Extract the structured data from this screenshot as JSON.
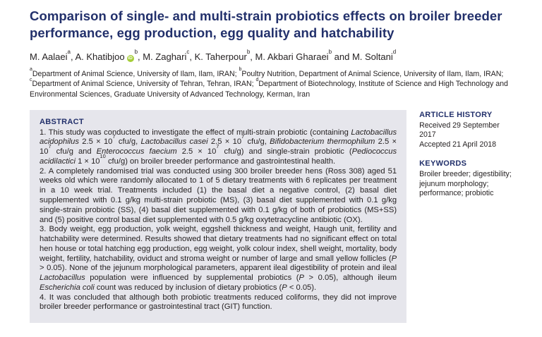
{
  "colors": {
    "accent_navy": "#22306b",
    "abstract_background": "#e6e6ec",
    "orcid_green": "#a6ce39"
  },
  "header": {
    "title": "Comparison of single- and multi-strain probiotics effects on broiler breeder performance, egg production, egg quality and hatchability",
    "authors": [
      {
        "prefix": "",
        "name": "M. Aalaei",
        "sup": "a",
        "orcid": false
      },
      {
        "prefix": ", ",
        "name": "A. Khatibjoo",
        "sup": "b",
        "orcid": true
      },
      {
        "prefix": ", ",
        "name": "M. Zaghari",
        "sup": "c",
        "orcid": false
      },
      {
        "prefix": ", ",
        "name": "K. Taherpour",
        "sup": "b",
        "orcid": false
      },
      {
        "prefix": ", ",
        "name": "M. Akbari Gharaei",
        "sup": "b",
        "orcid": false
      },
      {
        "prefix": " and ",
        "name": "M. Soltani",
        "sup": "d",
        "orcid": false
      }
    ],
    "orcid_icon_text": "iD",
    "affiliation_runs": [
      {
        "sup": "a"
      },
      "Department of Animal Science, University of Ilam, Ilam, IRAN; ",
      {
        "sup": "b"
      },
      "Poultry Nutrition, Department of Animal Science, University of Ilam, Ilam, IRAN; ",
      {
        "sup": "c"
      },
      "Department of Animal Science, University of Tehran, Tehran, IRAN; ",
      {
        "sup": "d"
      },
      "Department of Biotechnology, Institute of Science and High Technology and Environmental Sciences, Graduate University of Advanced Technology, Kerman, Iran"
    ]
  },
  "abstract": {
    "heading": "ABSTRACT",
    "paragraphs": [
      [
        "1. This study was conducted to investigate the effect of multi-strain probiotic (containing ",
        {
          "i": "Lactobacillus acidophilus"
        },
        " 2.5 × 10",
        {
          "sup": "7"
        },
        " cfu/g, ",
        {
          "i": "Lactobacillus casei"
        },
        " 2.5 × 10",
        {
          "sup": "7"
        },
        " cfu/g, ",
        {
          "i": "Bifidobacterium thermophilum"
        },
        " 2.5 × 10",
        {
          "sup": "7"
        },
        " cfu/g and ",
        {
          "i": "Enterococcus faecium"
        },
        " 2.5 × 10",
        {
          "sup": "7"
        },
        " cfu/g) and single-strain probiotic (",
        {
          "i": "Pediococcus acidilactici"
        },
        " 1 × 10",
        {
          "sup": "10"
        },
        " cfu/g) on broiler breeder performance and gastrointestinal health."
      ],
      [
        "2. A completely randomised trial was conducted using 300 broiler breeder hens (Ross 308) aged 51 weeks old which were randomly allocated to 1 of 5 dietary treatments with 6 replicates per treatment in a 10 week trial. Treatments included (1) the basal diet a negative control, (2) basal diet supplemented with 0.1 g/kg multi-strain probiotic (MS), (3) basal diet supplemented with 0.1 g/kg single-strain probiotic (SS), (4) basal diet supplemented with 0.1 g/kg of both of probiotics (MS+SS) and (5) positive control basal diet supplemented with 0.5 g/kg oxytetracycline antibiotic (OX)."
      ],
      [
        "3. Body weight, egg production, yolk weight, eggshell thickness and weight, Haugh unit, fertility and hatchability were determined. Results showed that dietary treatments had no significant effect on total hen house or total hatching egg production, egg weight, yolk colour index, shell weight, mortality, body weight, fertility, hatchability, oviduct and stroma weight or number of large and small yellow follicles (",
        {
          "i": "P"
        },
        " > 0.05). None of the jejunum morphological parameters, apparent ileal digestibility of protein and ileal ",
        {
          "i": "Lactobacillus"
        },
        " population were influenced by supplemental probiotics (",
        {
          "i": "P"
        },
        " > 0.05), although ileum ",
        {
          "i": "Escherichia coli"
        },
        " count was reduced by inclusion of dietary probiotics (",
        {
          "i": "P"
        },
        " < 0.05)."
      ],
      [
        "4. It was concluded that although both probiotic treatments reduced coliforms, they did not improve broiler breeder performance or gastrointestinal tract (GIT) function."
      ]
    ]
  },
  "article_history": {
    "heading": "ARTICLE HISTORY",
    "entries": [
      "Received 29 September 2017",
      "Accepted 21 April 2018"
    ]
  },
  "keywords": {
    "heading": "KEYWORDS",
    "text": "Broiler breeder; digestibility; jejunum morphology; performance; probiotic"
  }
}
